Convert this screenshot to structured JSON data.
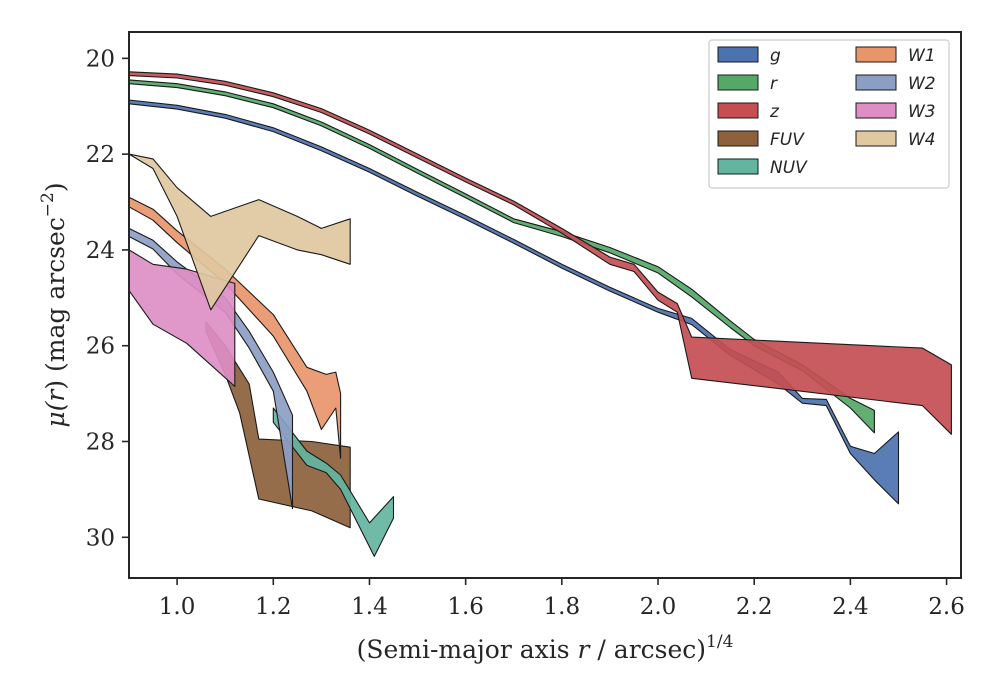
{
  "chart_data": {
    "type": "area",
    "xlabel_main": "(Semi-major axis ",
    "xlabel_var": "r",
    "xlabel_rest": " / arcsec)",
    "xlabel_sup": "1/4",
    "ylabel_main": "μ(",
    "ylabel_var": "r",
    "ylabel_rest": ") (mag arcsec",
    "ylabel_sup": "−2",
    "ylabel_close": ")",
    "xlim": [
      0.9,
      2.63
    ],
    "ylim": [
      30.85,
      19.45
    ],
    "y_inverted": true,
    "xticks": [
      "1.0",
      "1.2",
      "1.4",
      "1.6",
      "1.8",
      "2.0",
      "2.2",
      "2.4",
      "2.6"
    ],
    "xtick_values": [
      1.0,
      1.2,
      1.4,
      1.6,
      1.8,
      2.0,
      2.2,
      2.4,
      2.6
    ],
    "yticks": [
      "20",
      "22",
      "24",
      "26",
      "28",
      "30"
    ],
    "ytick_values": [
      20,
      22,
      24,
      26,
      28,
      30
    ],
    "legend_position": "upper right",
    "legend_columns": 2,
    "series": [
      {
        "name": "g",
        "color": "#4c72b0",
        "upper": [
          [
            0.9,
            20.87
          ],
          [
            1.0,
            20.98
          ],
          [
            1.1,
            21.17
          ],
          [
            1.2,
            21.45
          ],
          [
            1.3,
            21.85
          ],
          [
            1.4,
            22.3
          ],
          [
            1.5,
            22.8
          ],
          [
            1.6,
            23.28
          ],
          [
            1.7,
            23.78
          ],
          [
            1.8,
            24.3
          ],
          [
            1.9,
            24.78
          ],
          [
            2.0,
            25.22
          ],
          [
            2.07,
            25.43
          ],
          [
            2.15,
            26.08
          ],
          [
            2.25,
            26.55
          ],
          [
            2.3,
            27.1
          ],
          [
            2.35,
            27.12
          ],
          [
            2.4,
            28.1
          ],
          [
            2.45,
            28.25
          ],
          [
            2.5,
            27.8
          ]
        ],
        "lower": [
          [
            0.9,
            20.95
          ],
          [
            1.0,
            21.06
          ],
          [
            1.1,
            21.25
          ],
          [
            1.2,
            21.53
          ],
          [
            1.3,
            21.93
          ],
          [
            1.4,
            22.38
          ],
          [
            1.5,
            22.88
          ],
          [
            1.6,
            23.36
          ],
          [
            1.7,
            23.86
          ],
          [
            1.8,
            24.38
          ],
          [
            1.9,
            24.86
          ],
          [
            2.0,
            25.3
          ],
          [
            2.07,
            25.56
          ],
          [
            2.15,
            26.2
          ],
          [
            2.25,
            26.8
          ],
          [
            2.3,
            27.2
          ],
          [
            2.35,
            27.25
          ],
          [
            2.4,
            28.25
          ],
          [
            2.45,
            28.8
          ],
          [
            2.5,
            29.3
          ]
        ]
      },
      {
        "name": "r",
        "color": "#55a868",
        "upper": [
          [
            0.9,
            20.45
          ],
          [
            1.0,
            20.53
          ],
          [
            1.1,
            20.7
          ],
          [
            1.2,
            20.95
          ],
          [
            1.3,
            21.33
          ],
          [
            1.4,
            21.8
          ],
          [
            1.5,
            22.32
          ],
          [
            1.6,
            22.83
          ],
          [
            1.7,
            23.35
          ],
          [
            1.8,
            23.62
          ],
          [
            1.9,
            23.95
          ],
          [
            2.0,
            24.35
          ],
          [
            2.07,
            24.82
          ],
          [
            2.15,
            25.48
          ],
          [
            2.2,
            25.87
          ],
          [
            2.3,
            26.4
          ],
          [
            2.4,
            27.1
          ],
          [
            2.45,
            27.35
          ]
        ],
        "lower": [
          [
            0.9,
            20.53
          ],
          [
            1.0,
            20.61
          ],
          [
            1.1,
            20.78
          ],
          [
            1.2,
            21.03
          ],
          [
            1.3,
            21.41
          ],
          [
            1.4,
            21.88
          ],
          [
            1.5,
            22.4
          ],
          [
            1.6,
            22.91
          ],
          [
            1.7,
            23.43
          ],
          [
            1.8,
            23.72
          ],
          [
            1.9,
            24.06
          ],
          [
            2.0,
            24.48
          ],
          [
            2.07,
            24.98
          ],
          [
            2.15,
            25.62
          ],
          [
            2.2,
            26.0
          ],
          [
            2.3,
            26.52
          ],
          [
            2.4,
            27.3
          ],
          [
            2.45,
            27.82
          ]
        ]
      },
      {
        "name": "z",
        "color": "#c44e52",
        "upper": [
          [
            0.9,
            20.28
          ],
          [
            1.0,
            20.33
          ],
          [
            1.1,
            20.48
          ],
          [
            1.2,
            20.72
          ],
          [
            1.3,
            21.05
          ],
          [
            1.4,
            21.5
          ],
          [
            1.5,
            22.0
          ],
          [
            1.6,
            22.5
          ],
          [
            1.7,
            22.98
          ],
          [
            1.8,
            23.55
          ],
          [
            1.9,
            24.15
          ],
          [
            1.95,
            24.3
          ],
          [
            2.0,
            24.88
          ],
          [
            2.04,
            25.12
          ],
          [
            2.07,
            25.82
          ],
          [
            2.55,
            26.05
          ],
          [
            2.61,
            26.4
          ]
        ],
        "lower": [
          [
            0.9,
            20.36
          ],
          [
            1.0,
            20.41
          ],
          [
            1.1,
            20.56
          ],
          [
            1.2,
            20.8
          ],
          [
            1.3,
            21.13
          ],
          [
            1.4,
            21.58
          ],
          [
            1.5,
            22.08
          ],
          [
            1.6,
            22.58
          ],
          [
            1.7,
            23.06
          ],
          [
            1.8,
            23.65
          ],
          [
            1.9,
            24.3
          ],
          [
            1.95,
            24.45
          ],
          [
            2.0,
            25.05
          ],
          [
            2.04,
            25.3
          ],
          [
            2.07,
            26.68
          ],
          [
            2.55,
            27.25
          ],
          [
            2.61,
            27.85
          ]
        ]
      },
      {
        "name": "FUV",
        "color": "#8c613c",
        "upper": [
          [
            1.06,
            25.5
          ],
          [
            1.1,
            26.0
          ],
          [
            1.15,
            26.8
          ],
          [
            1.17,
            27.95
          ],
          [
            1.28,
            28.0
          ],
          [
            1.36,
            28.12
          ]
        ],
        "lower": [
          [
            1.06,
            25.7
          ],
          [
            1.1,
            26.6
          ],
          [
            1.13,
            27.4
          ],
          [
            1.17,
            29.2
          ],
          [
            1.28,
            29.45
          ],
          [
            1.36,
            29.8
          ]
        ]
      },
      {
        "name": "NUV",
        "color": "#64b5a0",
        "upper": [
          [
            1.2,
            27.3
          ],
          [
            1.27,
            28.2
          ],
          [
            1.31,
            28.45
          ],
          [
            1.34,
            28.7
          ],
          [
            1.4,
            29.7
          ],
          [
            1.45,
            29.15
          ]
        ],
        "lower": [
          [
            1.2,
            27.6
          ],
          [
            1.27,
            28.5
          ],
          [
            1.31,
            28.65
          ],
          [
            1.34,
            29.0
          ],
          [
            1.41,
            30.4
          ],
          [
            1.45,
            29.6
          ]
        ]
      },
      {
        "name": "W1",
        "color": "#e8956a",
        "upper": [
          [
            0.9,
            22.9
          ],
          [
            0.95,
            23.15
          ],
          [
            1.0,
            23.6
          ],
          [
            1.1,
            24.4
          ],
          [
            1.2,
            25.35
          ],
          [
            1.27,
            26.45
          ],
          [
            1.31,
            26.6
          ],
          [
            1.33,
            26.55
          ],
          [
            1.34,
            27.0
          ]
        ],
        "lower": [
          [
            0.9,
            23.1
          ],
          [
            0.95,
            23.38
          ],
          [
            1.0,
            23.85
          ],
          [
            1.1,
            24.7
          ],
          [
            1.2,
            25.8
          ],
          [
            1.27,
            26.95
          ],
          [
            1.3,
            27.75
          ],
          [
            1.33,
            27.3
          ],
          [
            1.34,
            28.35
          ]
        ]
      },
      {
        "name": "W2",
        "color": "#8c9ec4",
        "upper": [
          [
            0.9,
            23.55
          ],
          [
            0.95,
            23.8
          ],
          [
            1.0,
            24.25
          ],
          [
            1.1,
            25.0
          ],
          [
            1.15,
            25.7
          ],
          [
            1.2,
            26.55
          ],
          [
            1.24,
            27.45
          ]
        ],
        "lower": [
          [
            0.9,
            23.72
          ],
          [
            0.95,
            23.98
          ],
          [
            1.0,
            24.5
          ],
          [
            1.1,
            25.3
          ],
          [
            1.15,
            26.05
          ],
          [
            1.2,
            26.95
          ],
          [
            1.24,
            29.4
          ]
        ]
      },
      {
        "name": "W3",
        "color": "#dd8ec4",
        "upper": [
          [
            0.9,
            24.0
          ],
          [
            0.95,
            24.3
          ],
          [
            1.02,
            24.4
          ],
          [
            1.12,
            24.7
          ]
        ],
        "lower": [
          [
            0.9,
            24.85
          ],
          [
            0.95,
            25.55
          ],
          [
            1.02,
            25.95
          ],
          [
            1.12,
            26.85
          ]
        ]
      },
      {
        "name": "W4",
        "color": "#e0c8a0",
        "upper": [
          [
            0.9,
            22.0
          ],
          [
            0.95,
            22.1
          ],
          [
            1.0,
            22.7
          ],
          [
            1.07,
            23.3
          ],
          [
            1.17,
            22.95
          ],
          [
            1.25,
            23.3
          ],
          [
            1.3,
            23.55
          ],
          [
            1.36,
            23.35
          ]
        ],
        "lower": [
          [
            0.9,
            22.0
          ],
          [
            0.95,
            22.3
          ],
          [
            1.0,
            23.3
          ],
          [
            1.07,
            25.25
          ],
          [
            1.17,
            23.7
          ],
          [
            1.25,
            24.0
          ],
          [
            1.3,
            24.1
          ],
          [
            1.36,
            24.3
          ]
        ]
      }
    ]
  }
}
